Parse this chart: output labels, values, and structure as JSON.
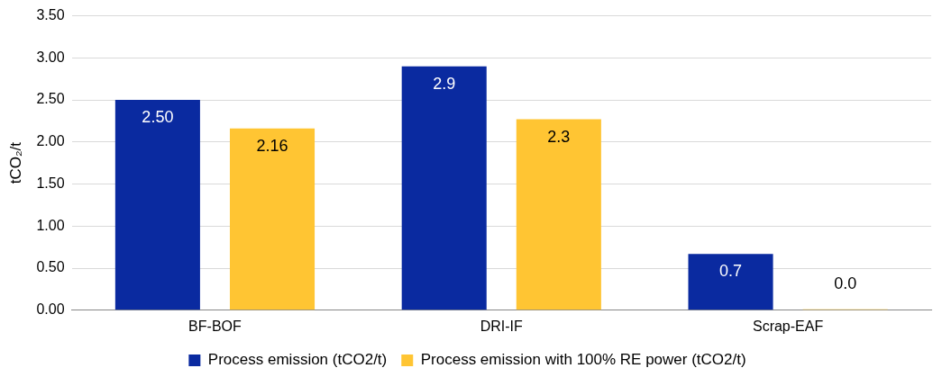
{
  "chart_data": {
    "type": "bar",
    "ylabel": "tCO₂/t",
    "categories": [
      "BF-BOF",
      "DRI-IF",
      "Scrap-EAF"
    ],
    "series": [
      {
        "name": "Process emission (tCO2/t)",
        "color": "#0a2aa0",
        "values": [
          2.5,
          2.9,
          0.67
        ],
        "value_labels": [
          "2.50",
          "2.9",
          "0.7"
        ]
      },
      {
        "name": "Process emission with 100% RE power (tCO2/t)",
        "color": "#ffc533",
        "values": [
          2.16,
          2.27,
          0.01
        ],
        "value_labels": [
          "2.16",
          "2.3",
          "0.0"
        ]
      }
    ],
    "ylim": [
      0,
      3.5
    ],
    "yticks": [
      {
        "value": 0,
        "label": "0.00"
      },
      {
        "value": 0.5,
        "label": "0.50"
      },
      {
        "value": 1,
        "label": "1.00"
      },
      {
        "value": 1.5,
        "label": "1.50"
      },
      {
        "value": 2,
        "label": "2.00"
      },
      {
        "value": 2.5,
        "label": "2.50"
      },
      {
        "value": 3,
        "label": "3.00"
      },
      {
        "value": 3.5,
        "label": "3.50"
      }
    ],
    "grid": "y",
    "legend": "bottom"
  }
}
